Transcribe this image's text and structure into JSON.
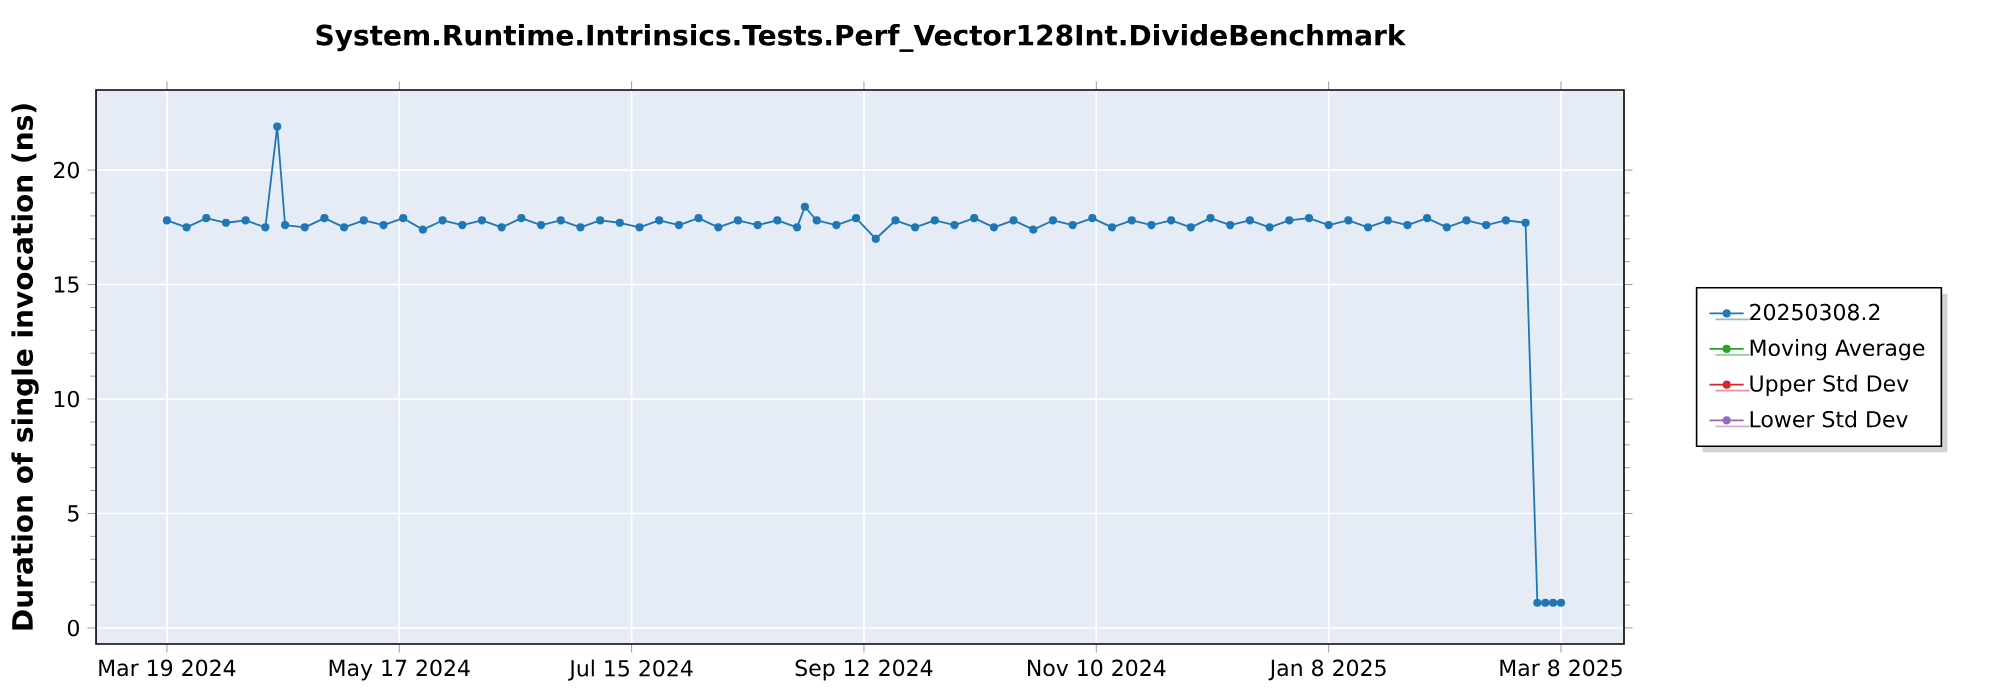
{
  "chart_data": {
    "type": "line",
    "title": "System.Runtime.Intrinsics.Tests.Perf_Vector128Int.DivideBenchmark",
    "ylabel": "Duration of single invocation (ns)",
    "x": [
      "2024-03-19",
      "2024-03-24",
      "2024-03-29",
      "2024-04-03",
      "2024-04-08",
      "2024-04-13",
      "2024-04-16",
      "2024-04-18",
      "2024-04-23",
      "2024-04-28",
      "2024-05-03",
      "2024-05-08",
      "2024-05-13",
      "2024-05-18",
      "2024-05-23",
      "2024-05-28",
      "2024-06-02",
      "2024-06-07",
      "2024-06-12",
      "2024-06-17",
      "2024-06-22",
      "2024-06-27",
      "2024-07-02",
      "2024-07-07",
      "2024-07-12",
      "2024-07-17",
      "2024-07-22",
      "2024-07-27",
      "2024-08-01",
      "2024-08-06",
      "2024-08-11",
      "2024-08-16",
      "2024-08-21",
      "2024-08-26",
      "2024-08-28",
      "2024-08-31",
      "2024-09-05",
      "2024-09-10",
      "2024-09-15",
      "2024-09-20",
      "2024-09-25",
      "2024-09-30",
      "2024-10-05",
      "2024-10-10",
      "2024-10-15",
      "2024-10-20",
      "2024-10-25",
      "2024-10-30",
      "2024-11-04",
      "2024-11-09",
      "2024-11-14",
      "2024-11-19",
      "2024-11-24",
      "2024-11-29",
      "2024-12-04",
      "2024-12-09",
      "2024-12-14",
      "2024-12-19",
      "2024-12-24",
      "2024-12-29",
      "2025-01-03",
      "2025-01-08",
      "2025-01-13",
      "2025-01-18",
      "2025-01-23",
      "2025-01-28",
      "2025-02-02",
      "2025-02-07",
      "2025-02-12",
      "2025-02-17",
      "2025-02-22",
      "2025-02-27",
      "2025-03-02",
      "2025-03-04",
      "2025-03-06",
      "2025-03-08"
    ],
    "series": [
      {
        "name": "20250308.2",
        "color": "#1f77b4",
        "values": [
          17.8,
          17.5,
          17.9,
          17.7,
          17.8,
          17.5,
          21.9,
          17.6,
          17.5,
          17.9,
          17.5,
          17.8,
          17.6,
          17.9,
          17.4,
          17.8,
          17.6,
          17.8,
          17.5,
          17.9,
          17.6,
          17.8,
          17.5,
          17.8,
          17.7,
          17.5,
          17.8,
          17.6,
          17.9,
          17.5,
          17.8,
          17.6,
          17.8,
          17.5,
          18.4,
          17.8,
          17.6,
          17.9,
          17.0,
          17.8,
          17.5,
          17.8,
          17.6,
          17.9,
          17.5,
          17.8,
          17.4,
          17.8,
          17.6,
          17.9,
          17.5,
          17.8,
          17.6,
          17.8,
          17.5,
          17.9,
          17.6,
          17.8,
          17.5,
          17.8,
          17.9,
          17.6,
          17.8,
          17.5,
          17.8,
          17.6,
          17.9,
          17.5,
          17.8,
          17.6,
          17.8,
          17.7,
          1.1,
          1.1,
          1.1,
          1.1
        ]
      },
      {
        "name": "Moving Average",
        "color": "#2ca02c",
        "values": [
          null,
          null,
          null,
          null,
          null,
          null,
          null,
          null,
          null,
          null,
          null,
          null,
          null,
          null,
          null,
          null,
          null,
          null,
          null,
          null,
          null,
          null,
          null,
          null,
          null,
          null,
          null,
          null,
          null,
          null,
          null,
          null,
          null,
          null,
          null,
          null,
          null,
          null,
          null,
          null,
          null,
          null,
          null,
          null,
          null,
          null,
          null,
          null,
          null,
          null,
          null,
          null,
          null,
          null,
          null,
          null,
          null,
          null,
          null,
          null,
          null,
          null,
          null,
          null,
          null,
          null,
          null,
          null,
          null,
          null,
          null,
          null,
          null,
          null,
          null,
          null
        ]
      },
      {
        "name": "Upper Std Dev",
        "color": "#d62728",
        "values": [
          null,
          null,
          null,
          null,
          null,
          null,
          null,
          null,
          null,
          null,
          null,
          null,
          null,
          null,
          null,
          null,
          null,
          null,
          null,
          null,
          null,
          null,
          null,
          null,
          null,
          null,
          null,
          null,
          null,
          null,
          null,
          null,
          null,
          null,
          null,
          null,
          null,
          null,
          null,
          null,
          null,
          null,
          null,
          null,
          null,
          null,
          null,
          null,
          null,
          null,
          null,
          null,
          null,
          null,
          null,
          null,
          null,
          null,
          null,
          null,
          null,
          null,
          null,
          null,
          null,
          null,
          null,
          null,
          null,
          null,
          null,
          null,
          null,
          null,
          null,
          null
        ]
      },
      {
        "name": "Lower Std Dev",
        "color": "#9467bd",
        "values": [
          null,
          null,
          null,
          null,
          null,
          null,
          null,
          null,
          null,
          null,
          null,
          null,
          null,
          null,
          null,
          null,
          null,
          null,
          null,
          null,
          null,
          null,
          null,
          null,
          null,
          null,
          null,
          null,
          null,
          null,
          null,
          null,
          null,
          null,
          null,
          null,
          null,
          null,
          null,
          null,
          null,
          null,
          null,
          null,
          null,
          null,
          null,
          null,
          null,
          null,
          null,
          null,
          null,
          null,
          null,
          null,
          null,
          null,
          null,
          null,
          null,
          null,
          null,
          null,
          null,
          null,
          null,
          null,
          null,
          null,
          null,
          null,
          null,
          null,
          null,
          null
        ]
      }
    ],
    "xlim": [
      "2024-03-01",
      "2025-03-24"
    ],
    "xticks": [
      {
        "value": "2024-03-19",
        "label": "Mar 19 2024"
      },
      {
        "value": "2024-05-17",
        "label": "May 17 2024"
      },
      {
        "value": "2024-07-15",
        "label": "Jul 15 2024"
      },
      {
        "value": "2024-09-12",
        "label": "Sep 12 2024"
      },
      {
        "value": "2024-11-10",
        "label": "Nov 10 2024"
      },
      {
        "value": "2025-01-08",
        "label": "Jan 8 2025"
      },
      {
        "value": "2025-03-08",
        "label": "Mar 8 2025"
      }
    ],
    "ylim": [
      -0.7,
      23.5
    ],
    "yticks": [
      0,
      5,
      10,
      15,
      20
    ],
    "grid": true,
    "legend": "right",
    "marker": "circle",
    "line_style": "solid"
  }
}
